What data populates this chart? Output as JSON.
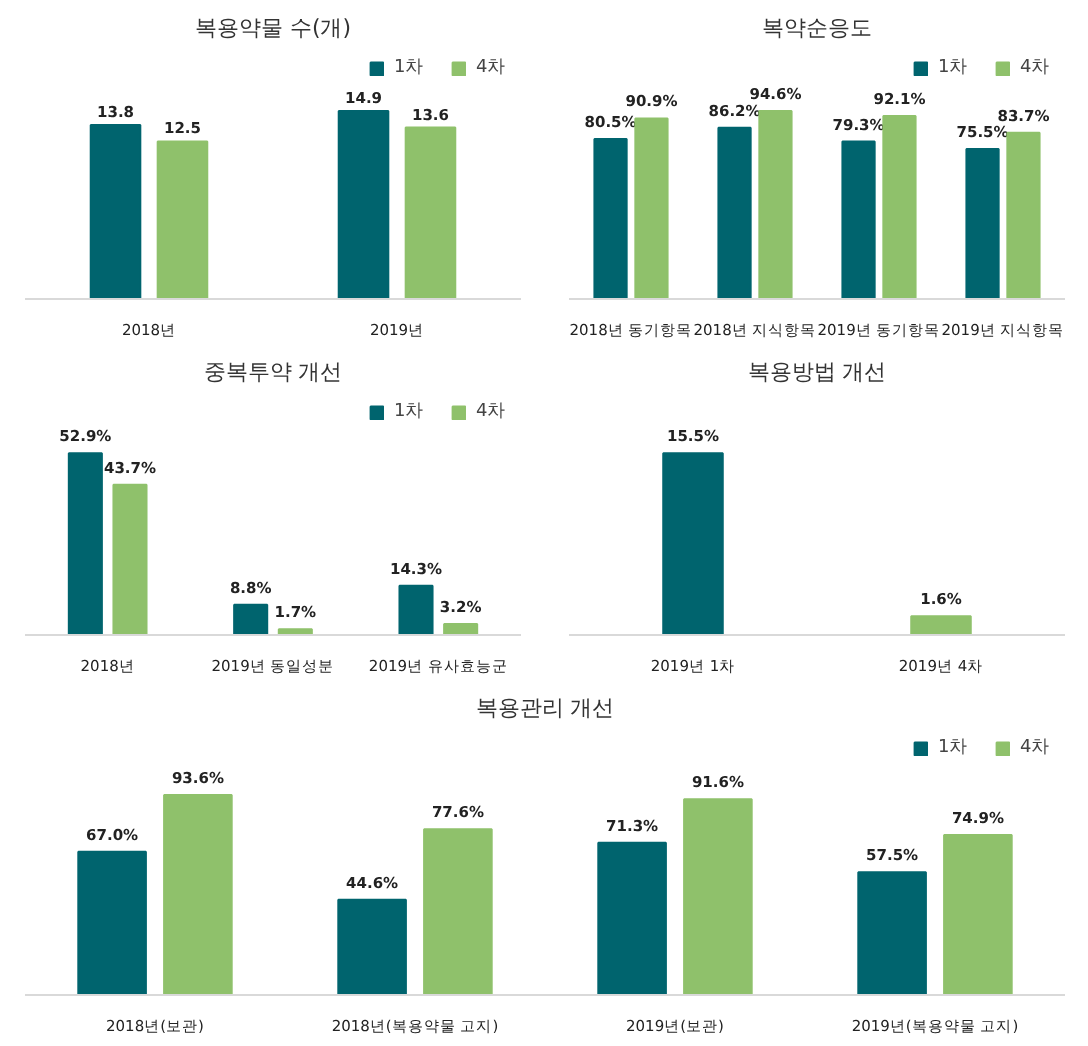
{
  "chart_data": [
    {
      "type": "bar",
      "title": "복용약물 수(개)",
      "categories": [
        "2018년",
        "2019년"
      ],
      "data_labels": true,
      "tick_labels": "x",
      "legend": "top right",
      "grid": false,
      "series": [
        {
          "name": "1차",
          "color": "#00646e",
          "values": [
            13.8,
            14.9
          ]
        },
        {
          "name": "4차",
          "color": "#8fc16b",
          "values": [
            12.5,
            13.6
          ]
        }
      ]
    },
    {
      "type": "bar",
      "title": "복약순응도",
      "categories": [
        "2018년 동기항목",
        "2018년 지식항목",
        "2019년 동기항목",
        "2019년 지식항목"
      ],
      "tick_labels": "x",
      "legend": "top right",
      "grid": false,
      "series": [
        {
          "name": "1차",
          "color": "#00646e",
          "values": [
            80.5,
            86.2,
            79.3,
            75.5
          ],
          "value_labels": [
            "80.5%",
            "86.2%",
            "79.3%",
            "75.5%"
          ]
        },
        {
          "name": "4차",
          "color": "#8fc16b",
          "values": [
            90.9,
            94.6,
            92.1,
            83.7
          ],
          "value_labels": [
            "90.9%",
            "94.6%",
            "92.1%",
            "83.7%"
          ]
        }
      ]
    },
    {
      "type": "bar",
      "title": "중복투약 개선",
      "categories": [
        "2018년",
        "2019년 동일성분",
        "2019년 유사효능군"
      ],
      "tick_labels": "x",
      "legend": "top right",
      "grid": false,
      "series": [
        {
          "name": "1차",
          "color": "#00646e",
          "values": [
            52.9,
            8.8,
            14.3
          ],
          "value_labels": [
            "52.9%",
            "8.8%",
            "14.3%"
          ]
        },
        {
          "name": "4차",
          "color": "#8fc16b",
          "values": [
            43.7,
            1.7,
            3.2
          ],
          "value_labels": [
            "43.7%",
            "1.7%",
            "3.2%"
          ]
        }
      ]
    },
    {
      "type": "bar",
      "title": "복용방법 개선",
      "categories": [
        "2019년 1차",
        "2019년 4차"
      ],
      "tick_labels": "x",
      "grid": false,
      "values": [
        15.5,
        1.6
      ],
      "colors": [
        "#00646e",
        "#8fc16b"
      ],
      "value_labels": [
        "15.5%",
        "1.6%"
      ]
    },
    {
      "type": "bar",
      "title": "복용관리 개선",
      "categories": [
        "2018년(보관)",
        "2018년(복용약물 고지)",
        "2019년(보관)",
        "2019년(복용약물 고지)"
      ],
      "tick_labels": "x",
      "legend": "top right",
      "grid": false,
      "series": [
        {
          "name": "1차",
          "color": "#00646e",
          "values": [
            67.0,
            44.6,
            71.3,
            57.5
          ],
          "value_labels": [
            "67.0%",
            "44.6%",
            "71.3%",
            "57.5%"
          ]
        },
        {
          "name": "4차",
          "color": "#8fc16b",
          "values": [
            93.6,
            77.6,
            91.6,
            74.9
          ],
          "value_labels": [
            "93.6%",
            "77.6%",
            "91.6%",
            "74.9%"
          ]
        }
      ]
    }
  ]
}
